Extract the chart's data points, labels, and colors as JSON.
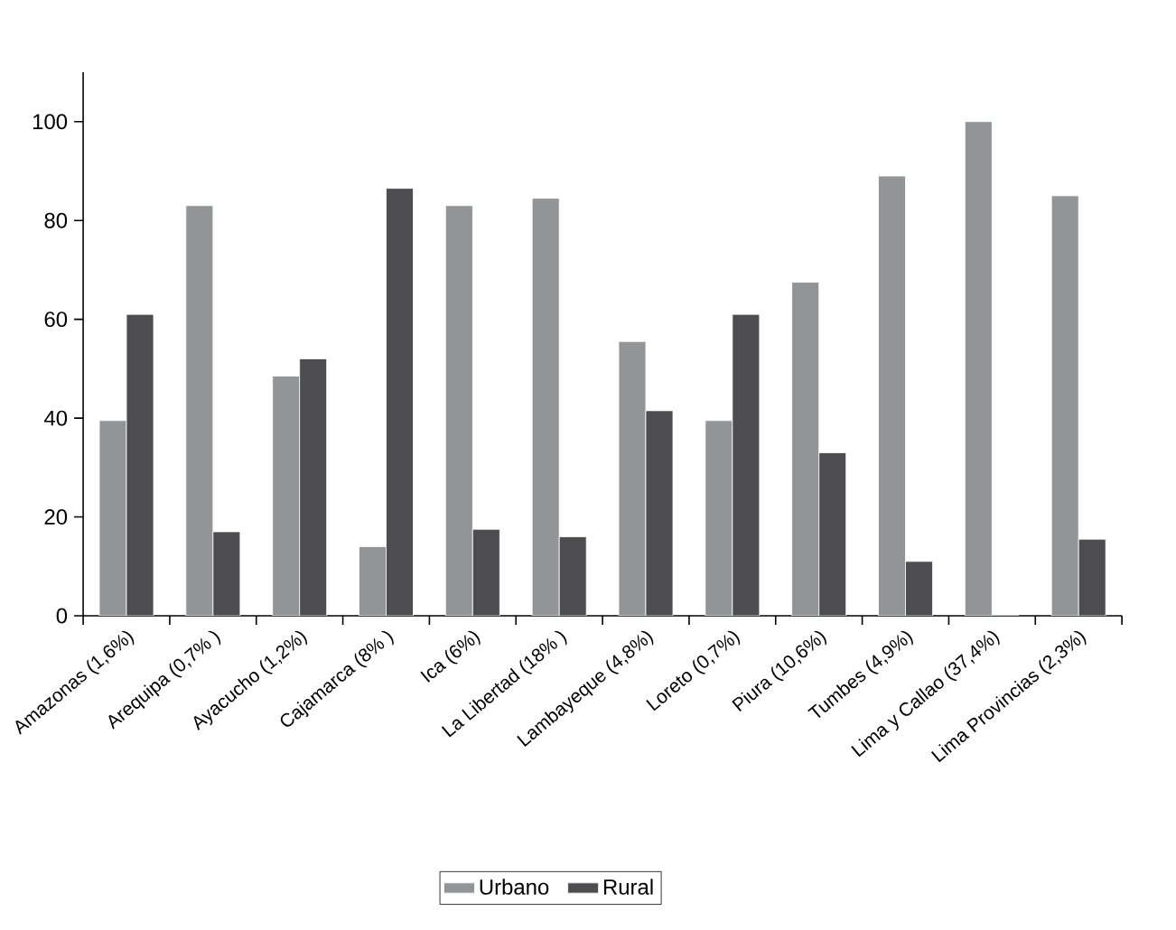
{
  "chart_data": {
    "type": "bar",
    "categories": [
      "Amazonas (1,6%)",
      "Arequipa (0,7% )",
      "Ayacucho (1,2%)",
      "Cajamarca (8% )",
      "Ica (6%)",
      "La Libertad (18% )",
      "Lambayeque (4,8%)",
      "Loreto (0,7%)",
      "Piura (10,6%)",
      "Tumbes (4,9%)",
      "Lima y Callao (37,4%)",
      "Lima Provincias (2,3%)"
    ],
    "series": [
      {
        "name": "Urbano",
        "color": "#939496",
        "values": [
          39.5,
          83,
          48.5,
          14,
          83,
          84.5,
          55.5,
          39.5,
          67.5,
          89,
          100,
          85
        ]
      },
      {
        "name": "Rural",
        "color": "#4d4d4f",
        "values": [
          61,
          17,
          52,
          86.5,
          17.5,
          16,
          41.5,
          61,
          33,
          11,
          0,
          15.5
        ]
      }
    ],
    "ylim": [
      0,
      110
    ],
    "yticks": [
      0,
      20,
      40,
      60,
      80,
      100
    ],
    "legend": "bottom",
    "grid": false
  }
}
